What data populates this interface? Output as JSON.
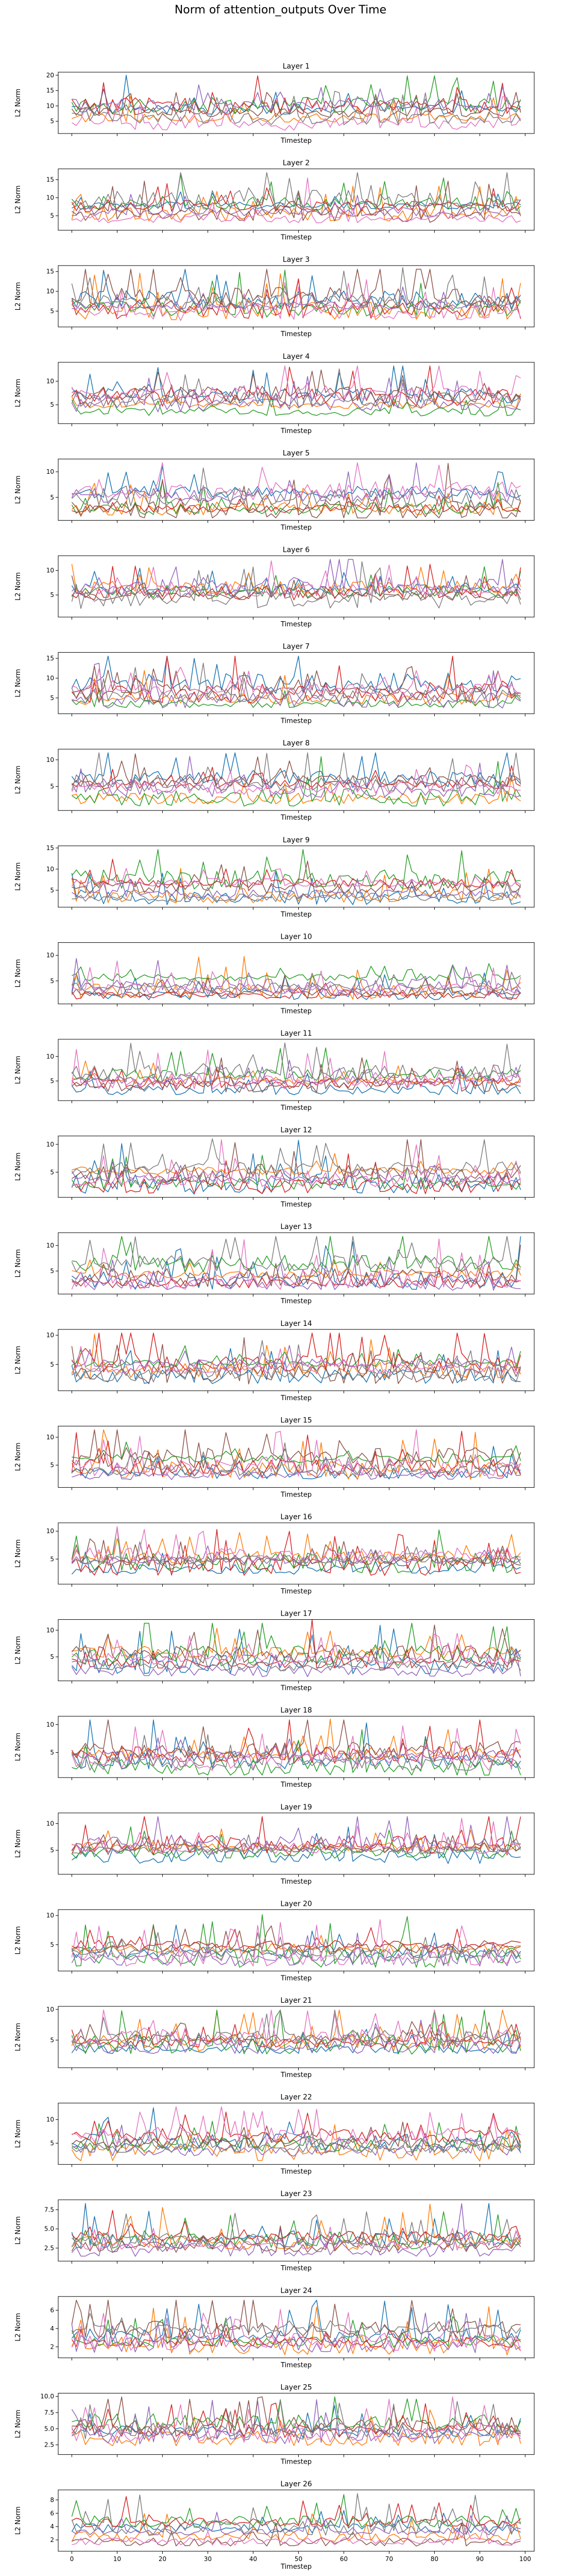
{
  "figure": {
    "suptitle": "Norm of attention_outputs Over Time"
  },
  "colors": [
    "#1f77b4",
    "#ff7f0e",
    "#2ca02c",
    "#d62728",
    "#9467bd",
    "#8c564b",
    "#e377c2",
    "#7f7f7f",
    "#bcbd22",
    "#17becf"
  ],
  "series_colors_used": [
    "#1f77b4",
    "#ff7f0e",
    "#2ca02c",
    "#d62728",
    "#9467bd",
    "#8c564b",
    "#e377c2",
    "#7f7f7f"
  ],
  "chart_data": {
    "type": "line",
    "xlabel": "Timestep",
    "ylabel": "L2 Norm",
    "xticks": [
      0,
      10,
      20,
      30,
      40,
      50,
      60,
      70,
      80,
      90,
      100
    ],
    "xlim": [
      -3,
      102
    ],
    "grid": false,
    "legend": "none",
    "n_series_per_layer": 8,
    "n_timesteps": 100,
    "tick_labels_shown_on": "last layer only",
    "layers": [
      {
        "title": "Layer 1",
        "ylim": [
          1,
          21
        ],
        "yticks": [
          5,
          10,
          15,
          20
        ],
        "spikes": [
          [
            0,
            12,
            20
          ]
        ]
      },
      {
        "title": "Layer 2",
        "ylim": [
          1,
          18
        ],
        "yticks": [
          5,
          10,
          15
        ],
        "spikes": [
          [
            2,
            24,
            16.5
          ],
          [
            6,
            52,
            15.5
          ],
          [
            2,
            82,
            15.5
          ]
        ]
      },
      {
        "title": "Layer 3",
        "ylim": [
          1,
          16.5
        ],
        "yticks": [
          5,
          10,
          15
        ],
        "spikes": [
          [
            7,
            73,
            16
          ]
        ]
      },
      {
        "title": "Layer 4",
        "ylim": [
          1,
          14
        ],
        "yticks": [
          5,
          10
        ],
        "spikes": [
          [
            3,
            48,
            13
          ]
        ]
      },
      {
        "title": "Layer 5",
        "ylim": [
          0.5,
          12.5
        ],
        "yticks": [
          5,
          10
        ],
        "spikes": []
      },
      {
        "title": "Layer 6",
        "ylim": [
          0.5,
          13
        ],
        "yticks": [
          5,
          10
        ],
        "spikes": []
      },
      {
        "title": "Layer 7",
        "ylim": [
          1,
          16.5
        ],
        "yticks": [
          5,
          10,
          15
        ],
        "spikes": [
          [
            0,
            27,
            15
          ]
        ]
      },
      {
        "title": "Layer 8",
        "ylim": [
          0.5,
          12
        ],
        "yticks": [
          5,
          10
        ],
        "spikes": []
      },
      {
        "title": "Layer 9",
        "ylim": [
          1,
          15.5
        ],
        "yticks": [
          5,
          10,
          15
        ],
        "spikes": []
      },
      {
        "title": "Layer 10",
        "ylim": [
          0.5,
          12.5
        ],
        "yticks": [
          5,
          10
        ],
        "spikes": []
      },
      {
        "title": "Layer 11",
        "ylim": [
          1,
          13.5
        ],
        "yticks": [
          5,
          10
        ],
        "spikes": [
          [
            7,
            96,
            12.5
          ]
        ]
      },
      {
        "title": "Layer 12",
        "ylim": [
          0.5,
          11.5
        ],
        "yticks": [
          5,
          10
        ],
        "spikes": [
          [
            7,
            31,
            11
          ]
        ]
      },
      {
        "title": "Layer 13",
        "ylim": [
          0.5,
          12.5
        ],
        "yticks": [
          5,
          10
        ],
        "spikes": []
      },
      {
        "title": "Layer 14",
        "ylim": [
          0.5,
          11
        ],
        "yticks": [
          5,
          10
        ],
        "spikes": []
      },
      {
        "title": "Layer 15",
        "ylim": [
          1,
          12
        ],
        "yticks": [
          5,
          10
        ],
        "spikes": []
      },
      {
        "title": "Layer 16",
        "ylim": [
          0.5,
          11.5
        ],
        "yticks": [
          5,
          10
        ],
        "spikes": []
      },
      {
        "title": "Layer 17",
        "ylim": [
          0.5,
          12
        ],
        "yticks": [
          5,
          10
        ],
        "spikes": [
          [
            3,
            53,
            12
          ]
        ]
      },
      {
        "title": "Layer 18",
        "ylim": [
          0.5,
          11.5
        ],
        "yticks": [
          5,
          10
        ],
        "spikes": [
          [
            1,
            57,
            11
          ]
        ]
      },
      {
        "title": "Layer 19",
        "ylim": [
          0.5,
          12
        ],
        "yticks": [
          5,
          10
        ],
        "spikes": [
          [
            6,
            86,
            11
          ]
        ]
      },
      {
        "title": "Layer 20",
        "ylim": [
          0.5,
          11
        ],
        "yticks": [
          5,
          10
        ],
        "spikes": []
      },
      {
        "title": "Layer 21",
        "ylim": [
          0.5,
          10.5
        ],
        "yticks": [
          5,
          10
        ],
        "spikes": [
          [
            1,
            40,
            9.5
          ]
        ]
      },
      {
        "title": "Layer 22",
        "ylim": [
          0.5,
          13.5
        ],
        "yticks": [
          5,
          10
        ],
        "spikes": []
      },
      {
        "title": "Layer 23",
        "ylim": [
          0.8,
          8.8
        ],
        "yticks": [
          2.5,
          5.0,
          7.5
        ],
        "tick_labels": [
          "2.5",
          "5.0",
          "7.5"
        ],
        "spikes": [
          [
            4,
            86,
            8.3
          ],
          [
            1,
            20,
            7.8
          ]
        ]
      },
      {
        "title": "Layer 24",
        "ylim": [
          0.8,
          7.5
        ],
        "yticks": [
          2,
          4,
          6
        ],
        "spikes": [
          [
            0,
            69,
            7
          ]
        ]
      },
      {
        "title": "Layer 25",
        "ylim": [
          1,
          10.5
        ],
        "yticks": [
          2.5,
          5.0,
          7.5,
          10.0
        ],
        "tick_labels": [
          "2.5",
          "5.0",
          "7.5",
          "10.0"
        ],
        "spikes": [
          [
            4,
            54,
            9.5
          ]
        ]
      },
      {
        "title": "Layer 26",
        "ylim": [
          0.3,
          9.5
        ],
        "yticks": [
          2,
          4,
          6,
          8
        ],
        "spikes": [
          [
            3,
            12,
            8.5
          ],
          [
            7,
            89,
            8.7
          ]
        ]
      }
    ]
  }
}
